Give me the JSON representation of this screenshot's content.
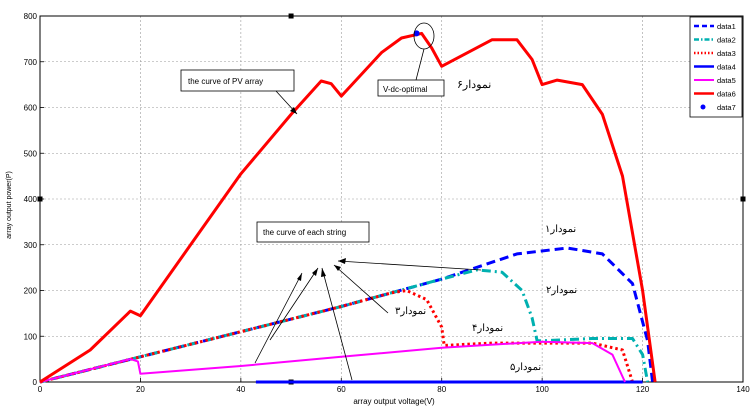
{
  "chart_data": {
    "type": "line",
    "xlabel": "array output voltage(V)",
    "ylabel": "array output power(P)",
    "xlim": [
      0,
      140
    ],
    "ylim": [
      0,
      800
    ],
    "xticks": [
      0,
      20,
      40,
      60,
      80,
      100,
      120,
      140
    ],
    "yticks": [
      0,
      100,
      200,
      300,
      400,
      500,
      600,
      700,
      800
    ],
    "grid": true,
    "legend_position": "top-right",
    "series": [
      {
        "name": "data1",
        "color": "#0000ff",
        "style": "dashed",
        "x": [
          0,
          20,
          40,
          60,
          80,
          95,
          105,
          112,
          118,
          121,
          122
        ],
        "y": [
          0,
          55,
          110,
          165,
          225,
          280,
          293,
          280,
          215,
          90,
          0
        ]
      },
      {
        "name": "data2",
        "color": "#00b0b0",
        "style": "dashdot",
        "x": [
          0,
          20,
          40,
          60,
          80,
          87,
          92,
          96,
          98,
          99,
          100,
          110,
          118,
          120,
          121
        ],
        "y": [
          0,
          55,
          110,
          165,
          225,
          245,
          240,
          200,
          140,
          90,
          90,
          95,
          95,
          60,
          0
        ]
      },
      {
        "name": "data3",
        "color": "#ff0000",
        "style": "dotted",
        "x": [
          0,
          20,
          40,
          60,
          70,
          73,
          77,
          80,
          80.5,
          90,
          110,
          116,
          118
        ],
        "y": [
          0,
          55,
          110,
          165,
          195,
          200,
          180,
          120,
          80,
          85,
          85,
          70,
          0
        ]
      },
      {
        "name": "data4",
        "color": "#0000ff",
        "style": "solid-thick",
        "x": [
          43,
          100,
          120
        ],
        "y": [
          0,
          0,
          0
        ]
      },
      {
        "name": "data5",
        "color": "#ff00ff",
        "style": "solid",
        "x": [
          0,
          18,
          19.5,
          20,
          40,
          60,
          80,
          100,
          110,
          114,
          116.5
        ],
        "y": [
          0,
          50,
          45,
          18,
          35,
          55,
          75,
          88,
          85,
          60,
          0
        ]
      },
      {
        "name": "data6",
        "color": "#ff0000",
        "style": "solid-thick",
        "x": [
          0,
          10,
          18,
          20,
          30,
          40,
          50,
          56,
          58,
          60,
          68,
          72,
          76,
          78,
          80,
          90,
          95,
          98,
          100,
          103,
          108,
          112,
          116,
          120,
          122.5
        ],
        "y": [
          0,
          70,
          155,
          145,
          300,
          455,
          585,
          658,
          652,
          625,
          720,
          752,
          762,
          730,
          690,
          748,
          748,
          705,
          650,
          660,
          650,
          585,
          450,
          200,
          0
        ]
      },
      {
        "name": "data7",
        "color": "#0000ff",
        "style": "marker",
        "x": [
          75
        ],
        "y": [
          762
        ]
      }
    ],
    "annotations": [
      {
        "text": "the curve of PV array",
        "boxed": true
      },
      {
        "text": "V-dc-optimal",
        "boxed": true
      },
      {
        "text": "the curve of each string",
        "boxed": true
      },
      {
        "text": "نمودار۶"
      },
      {
        "text": "نمودار۱"
      },
      {
        "text": "نمودار۲"
      },
      {
        "text": "نمودار۳"
      },
      {
        "text": "نمودار۴"
      },
      {
        "text": "نمودار۵"
      }
    ]
  }
}
